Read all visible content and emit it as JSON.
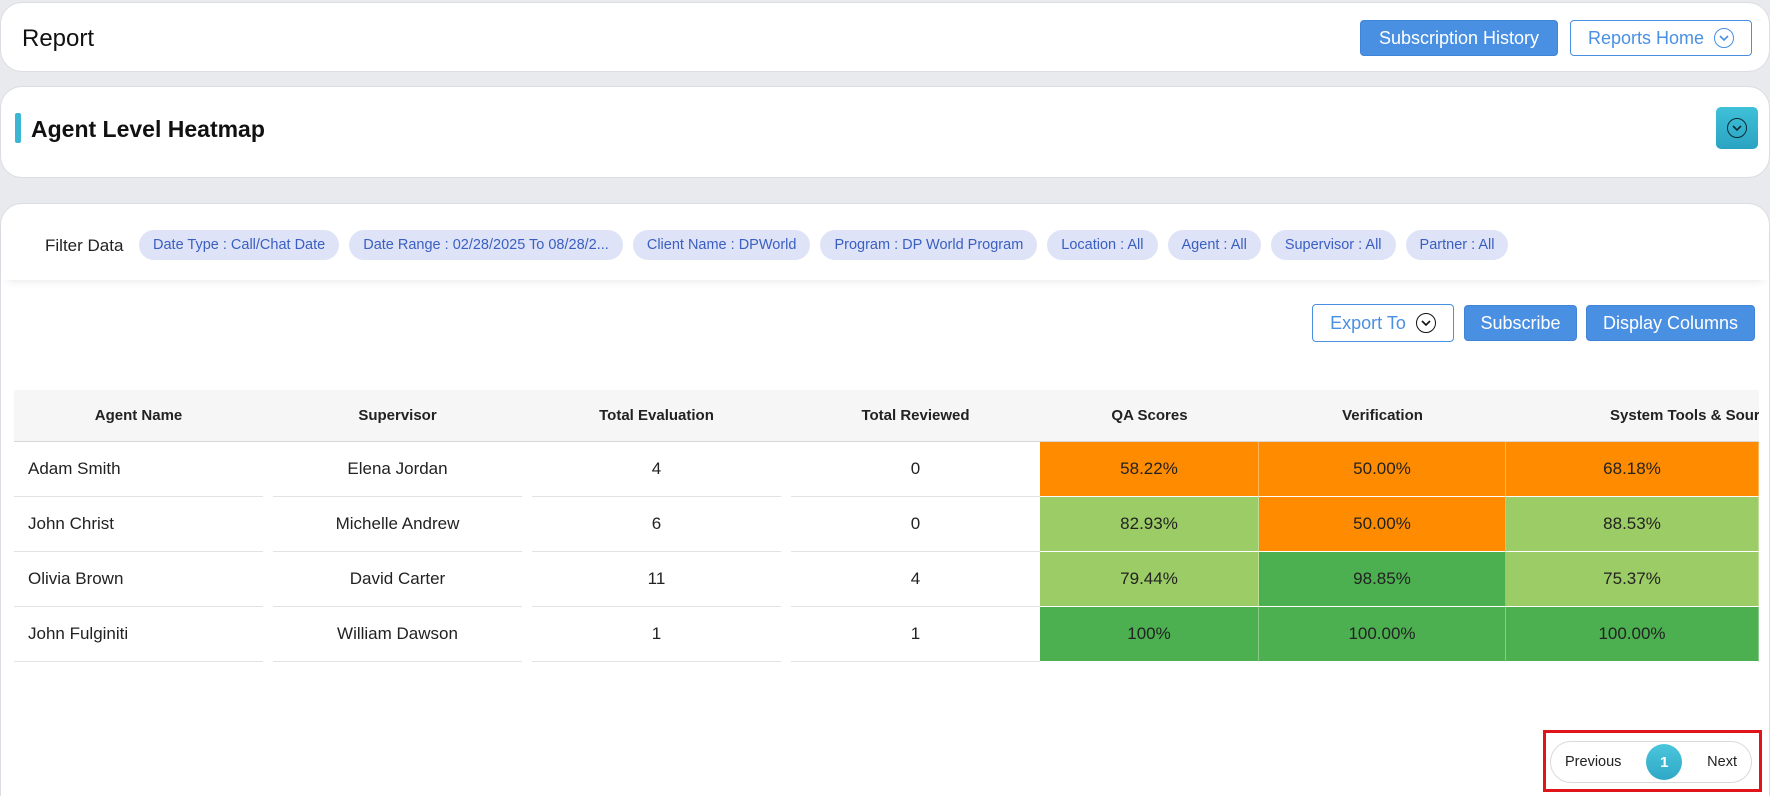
{
  "header": {
    "title": "Report",
    "subscription_history_label": "Subscription History",
    "reports_home_label": "Reports Home"
  },
  "heatmap": {
    "title": "Agent Level Heatmap"
  },
  "filters": {
    "label": "Filter Data",
    "chips": [
      "Date Type : Call/Chat Date",
      "Date Range : 02/28/2025 To 08/28/2...",
      "Client Name : DPWorld",
      "Program : DP World Program",
      "Location : All",
      "Agent : All",
      "Supervisor : All",
      "Partner : All"
    ]
  },
  "toolbar": {
    "export_label": "Export To",
    "subscribe_label": "Subscribe",
    "display_columns_label": "Display Columns"
  },
  "table": {
    "columns": [
      "Agent Name",
      "Supervisor",
      "Total Evaluation",
      "Total Reviewed",
      "QA Scores",
      "Verification",
      "System Tools & Source"
    ],
    "rows": [
      {
        "agent": "Adam Smith",
        "supervisor": "Elena Jordan",
        "total_eval": "4",
        "total_reviewed": "0",
        "qa": "58.22%",
        "verification": "50.00%",
        "system_tools": "68.18%"
      },
      {
        "agent": "John Christ",
        "supervisor": "Michelle Andrew",
        "total_eval": "6",
        "total_reviewed": "0",
        "qa": "82.93%",
        "verification": "50.00%",
        "system_tools": "88.53%"
      },
      {
        "agent": "Olivia Brown",
        "supervisor": "David Carter",
        "total_eval": "11",
        "total_reviewed": "4",
        "qa": "79.44%",
        "verification": "98.85%",
        "system_tools": "75.37%"
      },
      {
        "agent": "John Fulginiti",
        "supervisor": "William Dawson",
        "total_eval": "1",
        "total_reviewed": "1",
        "qa": "100%",
        "verification": "100.00%",
        "system_tools": "100.00%"
      }
    ]
  },
  "heat_colors": {
    "low": "#ff8c00",
    "mid": "#9ccc65",
    "high": "#4caf50"
  },
  "pagination": {
    "previous_label": "Previous",
    "current_page": "1",
    "next_label": "Next"
  }
}
